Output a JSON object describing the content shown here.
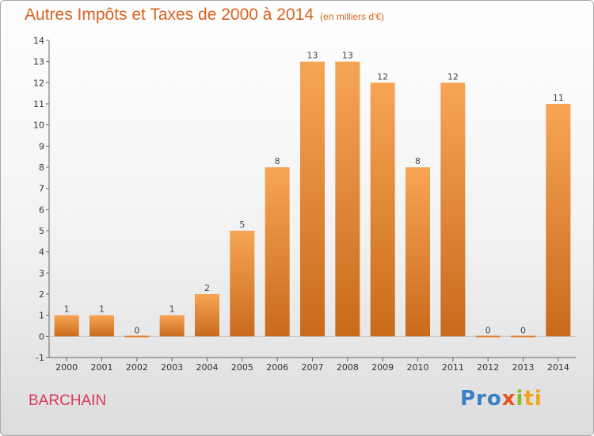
{
  "header": {
    "title": "Autres Impôts et Taxes de 2000 à 2014",
    "unit": "(en milliers d'€)"
  },
  "footer": {
    "commune": "BARCHAIN",
    "logo": {
      "p1": "Pro",
      "p2": "x",
      "p3": "i",
      "p4": "ti"
    }
  },
  "colors": {
    "bar_light": "#f7a555",
    "bar_dark": "#c96a1b",
    "title": "#d9621f",
    "commune": "#d93a5a"
  },
  "chart_data": {
    "type": "bar",
    "title": "Autres Impôts et Taxes de 2000 à 2014",
    "categories": [
      "2000",
      "2001",
      "2002",
      "2003",
      "2004",
      "2005",
      "2006",
      "2007",
      "2008",
      "2009",
      "2010",
      "2011",
      "2012",
      "2013",
      "2014"
    ],
    "values": [
      1,
      1,
      0,
      1,
      2,
      5,
      8,
      13,
      13,
      12,
      8,
      12,
      0,
      0,
      11
    ],
    "ylim": [
      -1,
      14
    ],
    "yticks": [
      -1,
      0,
      1,
      2,
      3,
      4,
      5,
      6,
      7,
      8,
      9,
      10,
      11,
      12,
      13,
      14
    ],
    "grid": false,
    "xlabel": "",
    "ylabel": ""
  }
}
